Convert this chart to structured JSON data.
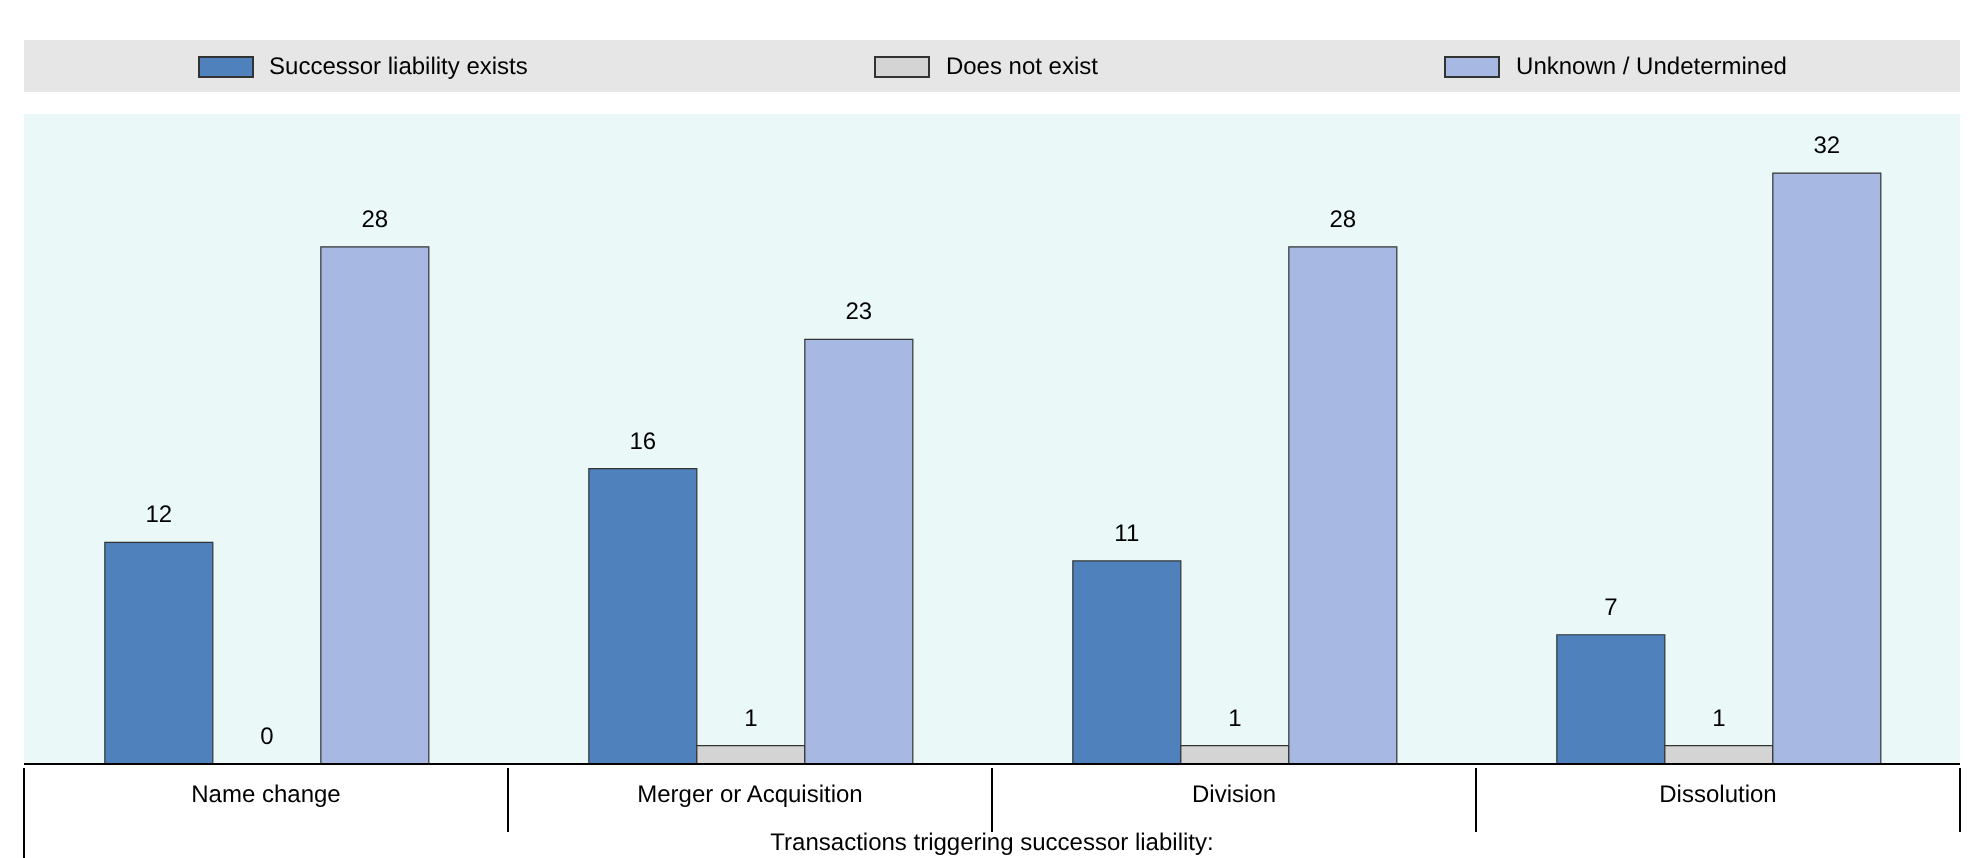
{
  "chart_data": {
    "type": "bar",
    "categories": [
      "Name change",
      "Merger or Acquisition",
      "Division",
      "Dissolution"
    ],
    "xlabel": "Transactions triggering successor liability:",
    "legend": "top",
    "data_labels": true,
    "series": [
      {
        "name": "Successor liability exists",
        "color": "#4f81bd",
        "values": [
          12,
          16,
          11,
          7
        ]
      },
      {
        "name": "Does not exist",
        "color": "#d4d4d4",
        "values": [
          0,
          1,
          1,
          1
        ]
      },
      {
        "name": "Unknown / Undetermined",
        "color": "#a7b9e3",
        "values": [
          28,
          23,
          28,
          32
        ]
      }
    ]
  }
}
